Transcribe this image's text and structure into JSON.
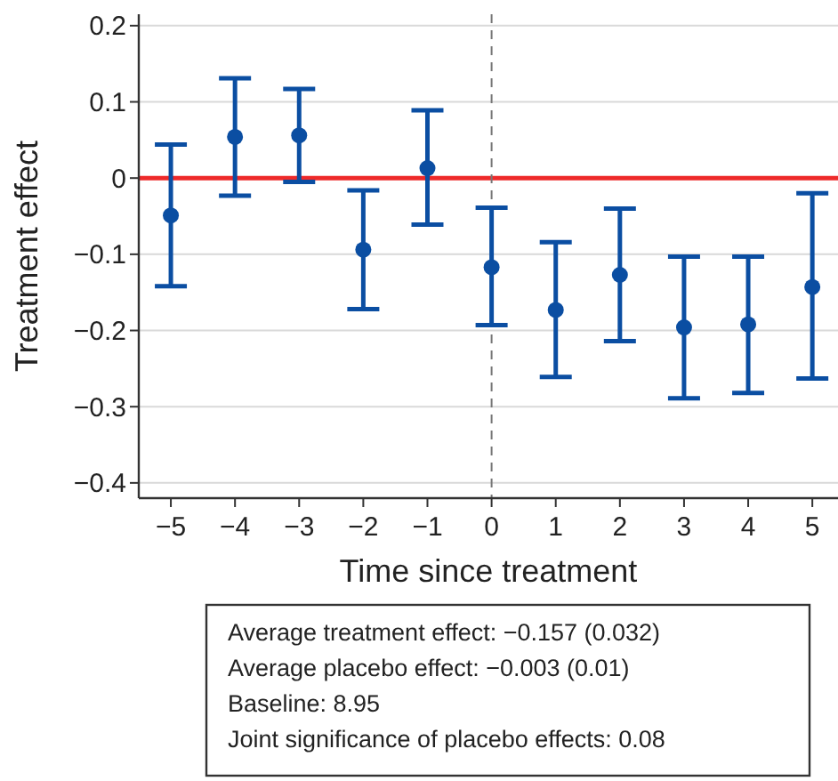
{
  "chart_data": {
    "type": "scatter",
    "xlabel": "Time since treatment",
    "ylabel": "Treatment effect",
    "x": [
      -5,
      -4,
      -3,
      -2,
      -1,
      0,
      1,
      2,
      3,
      4,
      5
    ],
    "series": [
      {
        "color": "#0b4ea2",
        "values": [
          -0.049,
          0.054,
          0.056,
          -0.094,
          0.013,
          -0.117,
          -0.173,
          -0.127,
          -0.196,
          -0.192,
          -0.143
        ],
        "errors": [
          [
            -0.142,
            0.044
          ],
          [
            -0.023,
            0.131
          ],
          [
            -0.005,
            0.117
          ],
          [
            -0.172,
            -0.016
          ],
          [
            -0.061,
            0.089
          ],
          [
            -0.193,
            -0.039
          ],
          [
            -0.261,
            -0.084
          ],
          [
            -0.214,
            -0.04
          ],
          [
            -0.289,
            -0.103
          ],
          [
            -0.282,
            -0.103
          ],
          [
            -0.263,
            -0.02
          ]
        ]
      }
    ],
    "xlim": [
      -5.5,
      5.4
    ],
    "xticks": [
      {
        "value": -5,
        "label": "−5"
      },
      {
        "value": -4,
        "label": "−4"
      },
      {
        "value": -3,
        "label": "−3"
      },
      {
        "value": -2,
        "label": "−2"
      },
      {
        "value": -1,
        "label": "−1"
      },
      0,
      1,
      2,
      3,
      4,
      5
    ],
    "ylim": [
      -0.42,
      0.215
    ],
    "yticks": [
      {
        "value": -0.4,
        "label": "−0.4"
      },
      {
        "value": -0.3,
        "label": "−0.3"
      },
      {
        "value": -0.2,
        "label": "−0.2"
      },
      {
        "value": -0.1,
        "label": "−0.1"
      },
      0,
      0.1,
      0.2
    ],
    "grid": "y",
    "marker": "circle",
    "ref_lines": [
      {
        "axis": "y",
        "value": 0,
        "color": "#ee2a2a",
        "line_style": "solid"
      },
      {
        "axis": "x",
        "value": 0,
        "color": "#777777",
        "line_style": "dashed"
      }
    ],
    "annotations": [
      "Average treatment effect: −0.157 (0.032)",
      "Average placebo effect: −0.003 (0.01)",
      "Baseline: 8.95",
      "Joint significance of placebo effects: 0.08"
    ]
  }
}
